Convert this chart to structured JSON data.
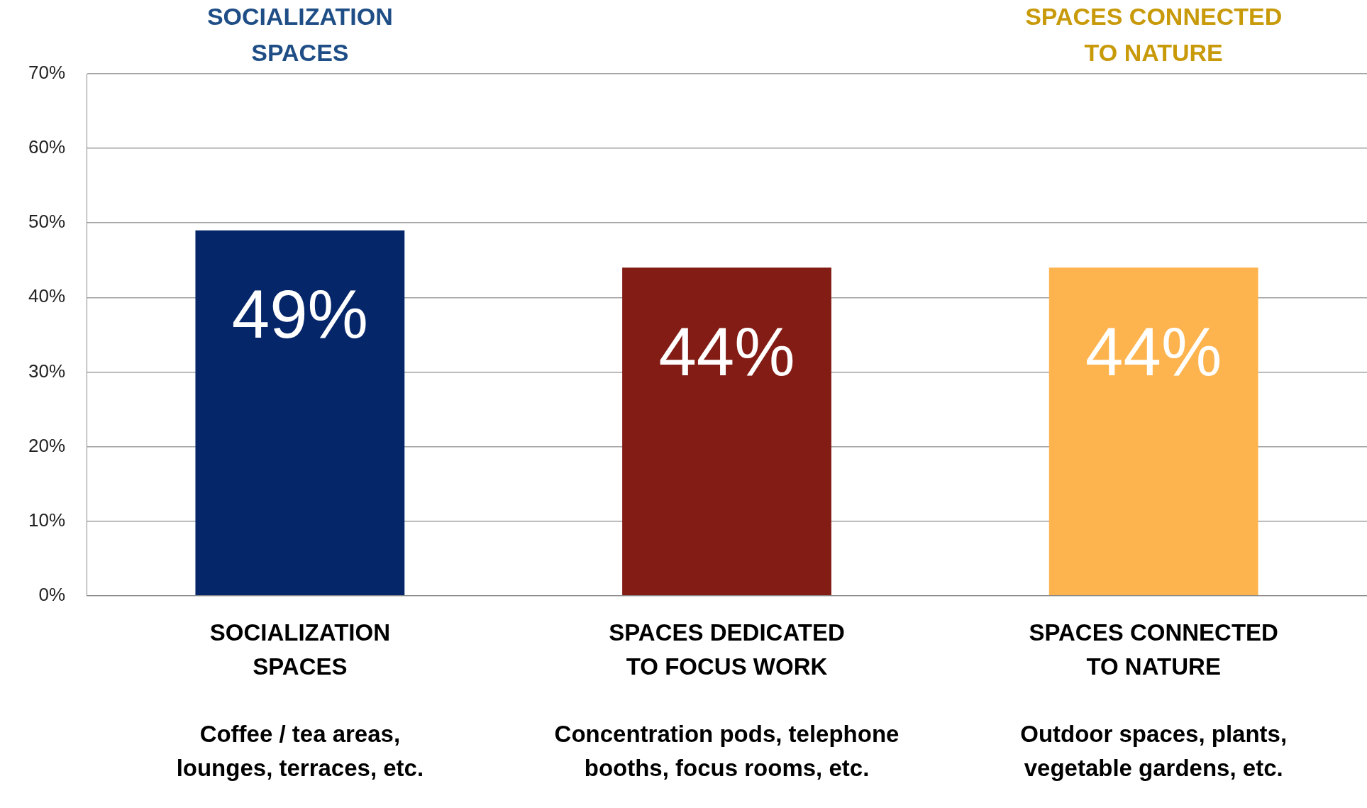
{
  "chart_data": {
    "type": "bar",
    "categories": [
      "SOCIALIZATION\nSPACES\n\nCoffee / tea areas,\nlounges, terraces, etc.",
      "SPACES DEDICATED\nTO FOCUS WORK\n\nConcentration pods, telephone\nbooths, focus rooms, etc.",
      "SPACES CONNECTED\nTO NATURE\n\nOutdoor spaces, plants,\nvegetable gardens, etc."
    ],
    "values": [
      49,
      44,
      44
    ],
    "colors": [
      "#06266a",
      "#831c15",
      "#fdb44f"
    ],
    "value_labels": [
      "49%",
      "44%",
      "44%"
    ],
    "ylim": [
      0,
      70
    ],
    "yticks": [
      {
        "value": 0,
        "label": "0%"
      },
      {
        "value": 10,
        "label": "10%"
      },
      {
        "value": 20,
        "label": "20%"
      },
      {
        "value": 30,
        "label": "30%"
      },
      {
        "value": 40,
        "label": "40%"
      },
      {
        "value": 50,
        "label": "50%"
      },
      {
        "value": 60,
        "label": "60%"
      },
      {
        "value": 70,
        "label": "70%"
      }
    ],
    "grid": "y",
    "legend": false,
    "annotations": [
      "SOCIALIZATION\nSPACES",
      "SPACES CONNECTED\nTO NATURE"
    ]
  }
}
